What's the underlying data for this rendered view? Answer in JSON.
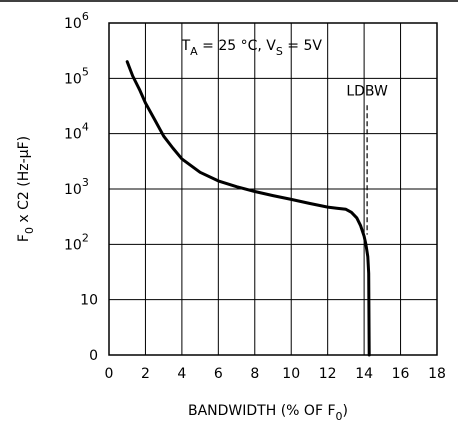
{
  "chart_data": {
    "type": "line",
    "condition_label": "T_A = 25 °C, V_S = 5V",
    "xlabel": "BANDWIDTH (% OF F_0)",
    "ylabel": "F_0 x C2 (Hz-µF)",
    "xlim": [
      0,
      18
    ],
    "x_ticks": [
      0,
      2,
      4,
      6,
      8,
      10,
      12,
      14,
      16,
      18
    ],
    "y_scale": "log (0 at bottom, then 10, 10^2 ... 10^6)",
    "y_ticks": [
      {
        "label": "0",
        "value": 0
      },
      {
        "label": "10",
        "value": 10
      },
      {
        "label": "10",
        "sup": "2",
        "value": 100
      },
      {
        "label": "10",
        "sup": "3",
        "value": 1000
      },
      {
        "label": "10",
        "sup": "4",
        "value": 10000
      },
      {
        "label": "10",
        "sup": "5",
        "value": 100000
      },
      {
        "label": "10",
        "sup": "6",
        "value": 1000000
      }
    ],
    "grid": true,
    "annotations": [
      {
        "text": "LDBW",
        "x": 14.0,
        "y_from": 150,
        "y_to": 30000
      }
    ],
    "series": [
      {
        "x": [
          1.0,
          1.3,
          1.7,
          2.0,
          2.5,
          3.0,
          3.5,
          4.0,
          5.0,
          6.0,
          7.0,
          8.0,
          9.0,
          10.0,
          11.0,
          12.0,
          12.5,
          13.0,
          13.3,
          13.6,
          13.8,
          14.0,
          14.1,
          14.2,
          14.25,
          14.28
        ],
        "y": [
          200000,
          110000,
          60000,
          36000,
          18000,
          9000,
          5500,
          3500,
          2000,
          1400,
          1100,
          900,
          760,
          650,
          550,
          470,
          450,
          430,
          380,
          300,
          220,
          140,
          100,
          60,
          30,
          0
        ]
      }
    ]
  }
}
